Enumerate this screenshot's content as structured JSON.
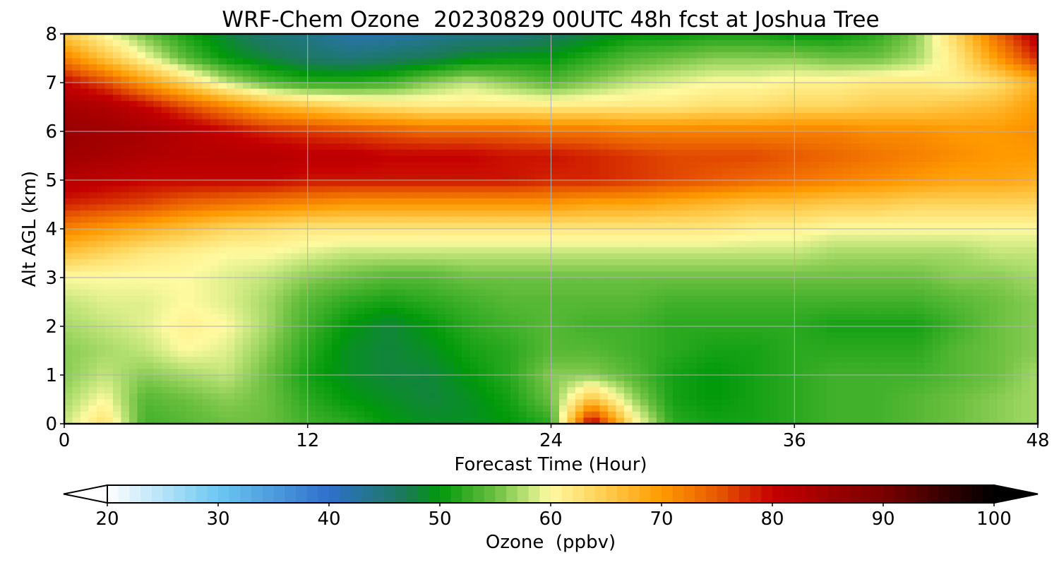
{
  "chart_data": {
    "type": "heatmap",
    "title": "WRF-Chem Ozone  20230829 00UTC 48h fcst at Joshua Tree",
    "xlabel": "Forecast Time (Hour)",
    "ylabel": "Alt AGL (km)",
    "x_ticks": [
      0,
      12,
      24,
      36,
      48
    ],
    "y_ticks": [
      0,
      1,
      2,
      3,
      4,
      5,
      6,
      7,
      8
    ],
    "xlim": [
      0,
      48
    ],
    "ylim": [
      0,
      8
    ],
    "grid": true,
    "colorbar": {
      "label": "Ozone  (ppbv)",
      "ticks": [
        20,
        30,
        40,
        50,
        60,
        70,
        80,
        90,
        100
      ],
      "range": [
        20,
        100
      ],
      "extend": "both",
      "orientation": "horizontal",
      "placement": "bottom",
      "color_stops": [
        {
          "value": 20,
          "color": "#ffffff"
        },
        {
          "value": 30,
          "color": "#6cc7f2"
        },
        {
          "value": 40,
          "color": "#2e6fcc"
        },
        {
          "value": 47,
          "color": "#1a7a55"
        },
        {
          "value": 50,
          "color": "#00990a"
        },
        {
          "value": 55,
          "color": "#6cc040"
        },
        {
          "value": 58,
          "color": "#c2e57a"
        },
        {
          "value": 60,
          "color": "#fffaa0"
        },
        {
          "value": 65,
          "color": "#ffcc4d"
        },
        {
          "value": 70,
          "color": "#ff9a00"
        },
        {
          "value": 75,
          "color": "#e85a00"
        },
        {
          "value": 80,
          "color": "#c40000"
        },
        {
          "value": 90,
          "color": "#7a0000"
        },
        {
          "value": 100,
          "color": "#000000"
        }
      ]
    },
    "x": [
      0,
      2,
      4,
      6,
      8,
      10,
      12,
      14,
      16,
      18,
      20,
      22,
      24,
      26,
      28,
      30,
      32,
      34,
      36,
      38,
      40,
      42,
      44,
      46,
      48
    ],
    "y": [
      0,
      0.5,
      1,
      1.5,
      2,
      2.5,
      3,
      3.5,
      4,
      4.5,
      5,
      5.5,
      6,
      6.5,
      7,
      7.5,
      8
    ],
    "z": [
      [
        58,
        63,
        53,
        54,
        55,
        55,
        53,
        52,
        50,
        49,
        49,
        50,
        52,
        82,
        62,
        52,
        51,
        51,
        52,
        53,
        53,
        54,
        55,
        56,
        57
      ],
      [
        57,
        60,
        54,
        55,
        56,
        55,
        52,
        50,
        49,
        48,
        49,
        51,
        55,
        66,
        57,
        51,
        50,
        51,
        52,
        53,
        53,
        54,
        55,
        56,
        57
      ],
      [
        56,
        58,
        56,
        57,
        58,
        55,
        51,
        49,
        48,
        48,
        50,
        52,
        56,
        56,
        54,
        51,
        50,
        51,
        52,
        53,
        53,
        53,
        54,
        55,
        57
      ],
      [
        56,
        57,
        58,
        60,
        59,
        56,
        52,
        49,
        48,
        49,
        51,
        52,
        54,
        54,
        53,
        52,
        51,
        51,
        52,
        52,
        52,
        52,
        54,
        55,
        56
      ],
      [
        57,
        58,
        59,
        61,
        60,
        57,
        53,
        50,
        48,
        50,
        52,
        53,
        54,
        53,
        53,
        52,
        52,
        52,
        52,
        51,
        51,
        51,
        53,
        55,
        56
      ],
      [
        58,
        59,
        59,
        60,
        59,
        57,
        54,
        52,
        51,
        52,
        53,
        54,
        54,
        54,
        54,
        53,
        53,
        53,
        53,
        53,
        53,
        53,
        54,
        55,
        56
      ],
      [
        60,
        60,
        60,
        60,
        59,
        58,
        56,
        55,
        54,
        54,
        55,
        55,
        55,
        55,
        55,
        55,
        55,
        55,
        55,
        55,
        55,
        55,
        56,
        56,
        57
      ],
      [
        66,
        64,
        62,
        61,
        60,
        60,
        59,
        58,
        58,
        58,
        58,
        58,
        58,
        58,
        58,
        58,
        58,
        58,
        58,
        57,
        57,
        57,
        57,
        58,
        58
      ],
      [
        72,
        70,
        68,
        66,
        64,
        63,
        62,
        62,
        62,
        62,
        62,
        62,
        62,
        62,
        62,
        62,
        62,
        61,
        61,
        60,
        60,
        60,
        60,
        60,
        60
      ],
      [
        78,
        77,
        76,
        74,
        73,
        72,
        71,
        70,
        70,
        70,
        70,
        70,
        70,
        69,
        69,
        68,
        67,
        66,
        66,
        65,
        65,
        64,
        64,
        64,
        64
      ],
      [
        82,
        81,
        80,
        80,
        80,
        80,
        79,
        79,
        79,
        79,
        79,
        79,
        78,
        78,
        77,
        76,
        75,
        74,
        73,
        72,
        71,
        70,
        69,
        69,
        68
      ],
      [
        85,
        84,
        83,
        82,
        82,
        82,
        81,
        81,
        80,
        80,
        80,
        79,
        79,
        78,
        77,
        76,
        76,
        76,
        75,
        74,
        73,
        72,
        71,
        70,
        70
      ],
      [
        86,
        85,
        84,
        82,
        80,
        78,
        77,
        76,
        75,
        74,
        74,
        74,
        73,
        73,
        72,
        72,
        72,
        72,
        72,
        72,
        71,
        71,
        70,
        70,
        71
      ],
      [
        84,
        83,
        80,
        76,
        72,
        68,
        66,
        64,
        63,
        62,
        62,
        62,
        62,
        62,
        62,
        62,
        63,
        63,
        64,
        64,
        65,
        65,
        66,
        67,
        70
      ],
      [
        80,
        76,
        70,
        64,
        58,
        54,
        52,
        52,
        53,
        56,
        58,
        56,
        54,
        56,
        58,
        59,
        60,
        60,
        61,
        61,
        62,
        62,
        61,
        63,
        68
      ],
      [
        72,
        66,
        60,
        54,
        50,
        48,
        46,
        45,
        46,
        47,
        49,
        50,
        50,
        52,
        54,
        55,
        56,
        56,
        56,
        55,
        55,
        57,
        62,
        70,
        78
      ],
      [
        65,
        60,
        55,
        51,
        48,
        45,
        44,
        42,
        42,
        43,
        44,
        44,
        46,
        48,
        50,
        50,
        51,
        51,
        50,
        50,
        52,
        56,
        64,
        74,
        82
      ]
    ]
  }
}
